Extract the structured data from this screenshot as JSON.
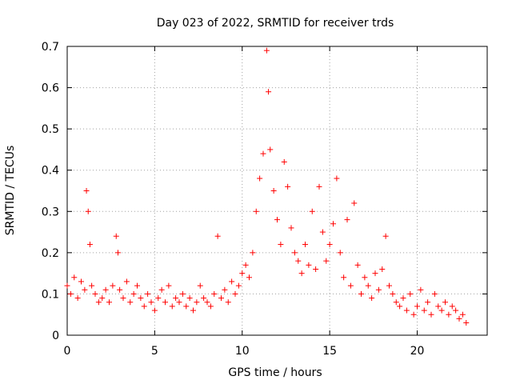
{
  "chart_data": {
    "type": "scatter",
    "title": "Day 023 of 2022, SRMTID for receiver trds",
    "xlabel": "GPS time / hours",
    "ylabel": "SRMTID / TECUs",
    "xlim": [
      0,
      24
    ],
    "ylim": [
      0,
      0.7
    ],
    "x_ticks": [
      0,
      5,
      10,
      15,
      20
    ],
    "x_tick_labels": [
      "0",
      "5",
      "10",
      "15",
      "20"
    ],
    "y_ticks": [
      0,
      0.1,
      0.2,
      0.3,
      0.4,
      0.5,
      0.6,
      0.7
    ],
    "y_tick_labels": [
      "0",
      "0.1",
      "0.2",
      "0.3",
      "0.4",
      "0.5",
      "0.6",
      "0.7"
    ],
    "grid": true,
    "marker": "+",
    "series": [
      {
        "name": "SRMTID",
        "color": "#ff0000",
        "x": [
          0.0,
          0.2,
          0.4,
          0.6,
          0.8,
          1.0,
          1.1,
          1.2,
          1.3,
          1.4,
          1.6,
          1.8,
          2.0,
          2.2,
          2.4,
          2.6,
          2.8,
          2.9,
          3.0,
          3.2,
          3.4,
          3.6,
          3.8,
          4.0,
          4.2,
          4.4,
          4.6,
          4.8,
          5.0,
          5.2,
          5.4,
          5.6,
          5.8,
          6.0,
          6.2,
          6.4,
          6.6,
          6.8,
          7.0,
          7.2,
          7.4,
          7.6,
          7.8,
          8.0,
          8.2,
          8.4,
          8.6,
          8.8,
          9.0,
          9.2,
          9.4,
          9.6,
          9.8,
          10.0,
          10.2,
          10.4,
          10.6,
          10.8,
          11.0,
          11.2,
          11.4,
          11.5,
          11.6,
          11.8,
          12.0,
          12.2,
          12.4,
          12.6,
          12.8,
          13.0,
          13.2,
          13.4,
          13.6,
          13.8,
          14.0,
          14.2,
          14.4,
          14.6,
          14.8,
          15.0,
          15.2,
          15.4,
          15.6,
          15.8,
          16.0,
          16.2,
          16.4,
          16.6,
          16.8,
          17.0,
          17.2,
          17.4,
          17.6,
          17.8,
          18.0,
          18.2,
          18.4,
          18.6,
          18.8,
          19.0,
          19.2,
          19.4,
          19.6,
          19.8,
          20.0,
          20.2,
          20.4,
          20.6,
          20.8,
          21.0,
          21.2,
          21.4,
          21.6,
          21.8,
          22.0,
          22.2,
          22.4,
          22.6,
          22.8
        ],
        "y": [
          0.12,
          0.1,
          0.14,
          0.09,
          0.13,
          0.11,
          0.35,
          0.3,
          0.22,
          0.12,
          0.1,
          0.08,
          0.09,
          0.11,
          0.08,
          0.12,
          0.24,
          0.2,
          0.11,
          0.09,
          0.13,
          0.08,
          0.1,
          0.12,
          0.09,
          0.07,
          0.1,
          0.08,
          0.06,
          0.09,
          0.11,
          0.08,
          0.12,
          0.07,
          0.09,
          0.08,
          0.1,
          0.07,
          0.09,
          0.06,
          0.08,
          0.12,
          0.09,
          0.08,
          0.07,
          0.1,
          0.24,
          0.09,
          0.11,
          0.08,
          0.13,
          0.1,
          0.12,
          0.15,
          0.17,
          0.14,
          0.2,
          0.3,
          0.38,
          0.44,
          0.69,
          0.59,
          0.45,
          0.35,
          0.28,
          0.22,
          0.42,
          0.36,
          0.26,
          0.2,
          0.18,
          0.15,
          0.22,
          0.17,
          0.3,
          0.16,
          0.36,
          0.25,
          0.18,
          0.22,
          0.27,
          0.38,
          0.2,
          0.14,
          0.28,
          0.12,
          0.32,
          0.17,
          0.1,
          0.14,
          0.12,
          0.09,
          0.15,
          0.11,
          0.16,
          0.24,
          0.12,
          0.1,
          0.08,
          0.07,
          0.09,
          0.06,
          0.1,
          0.05,
          0.07,
          0.11,
          0.06,
          0.08,
          0.05,
          0.1,
          0.07,
          0.06,
          0.08,
          0.05,
          0.07,
          0.06,
          0.04,
          0.05,
          0.03
        ]
      }
    ]
  }
}
